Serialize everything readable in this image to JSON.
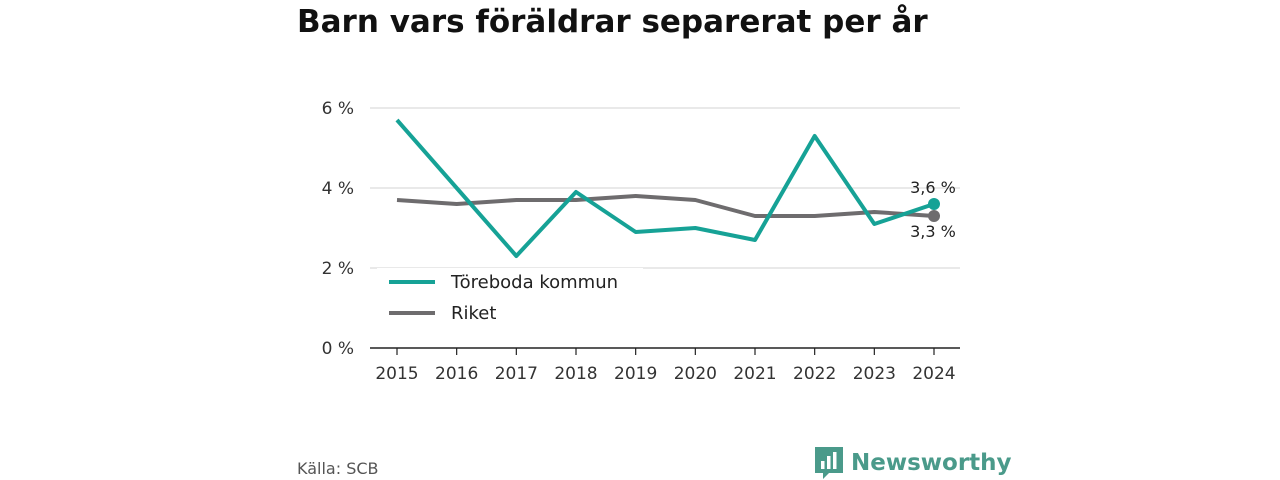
{
  "title": "Barn vars föräldrar separerat per år",
  "source": "Källa: SCB",
  "brand": "Newsworthy",
  "colors": {
    "teal": "#16a296",
    "gray": "#6e6c6e",
    "brand": "#4a9a8a"
  },
  "chart_data": {
    "type": "line",
    "title": "Barn vars föräldrar separerat per år",
    "x": [
      2015,
      2016,
      2017,
      2018,
      2019,
      2020,
      2021,
      2022,
      2023,
      2024
    ],
    "ylim": [
      0,
      6
    ],
    "yticks": [
      0,
      2,
      4,
      6
    ],
    "ytick_labels": [
      "0 %",
      "2 %",
      "4 %",
      "6 %"
    ],
    "grid": true,
    "legend_position": "lower-left",
    "series": [
      {
        "name": "Töreboda kommun",
        "color": "#16a296",
        "values": [
          5.7,
          4.0,
          2.3,
          3.9,
          2.9,
          3.0,
          2.7,
          5.3,
          3.1,
          3.6
        ],
        "end_label": "3,6 %"
      },
      {
        "name": "Riket",
        "color": "#6e6c6e",
        "values": [
          3.7,
          3.6,
          3.7,
          3.7,
          3.8,
          3.7,
          3.3,
          3.3,
          3.4,
          3.3
        ],
        "end_label": "3,3 %"
      }
    ]
  }
}
